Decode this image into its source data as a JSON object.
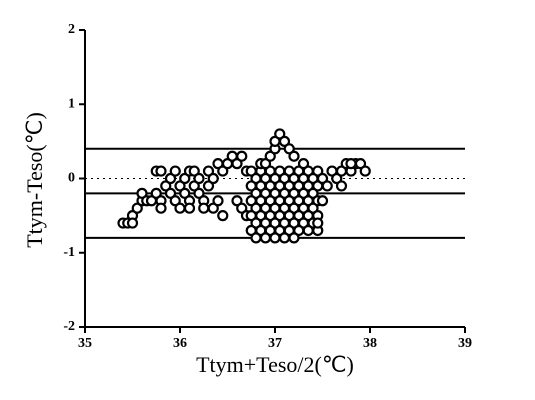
{
  "chart_data": {
    "type": "scatter",
    "x_label": "Ttym+Teso/2(℃)",
    "y_label": "Ttym-Teso(℃)",
    "xlim": [
      35,
      39
    ],
    "xticks": [
      35,
      36,
      37,
      38,
      39
    ],
    "ylim": [
      -2,
      2
    ],
    "yticks": [
      -2,
      -1,
      0,
      1,
      2
    ],
    "color": "#000000",
    "hlines": [
      0.4,
      -0.2,
      -0.8
    ],
    "dotted_line": 0,
    "x": [
      35.4,
      35.45,
      35.5,
      35.5,
      35.55,
      35.6,
      35.6,
      35.65,
      35.7,
      35.75,
      35.8,
      35.8,
      35.75,
      35.8,
      35.85,
      35.9,
      35.95,
      35.9,
      35.95,
      36.0,
      36.0,
      36.05,
      36.05,
      36.1,
      36.1,
      36.1,
      36.15,
      36.15,
      36.2,
      36.2,
      36.25,
      36.25,
      36.3,
      36.3,
      36.35,
      36.35,
      36.4,
      36.4,
      36.45,
      36.45,
      36.5,
      36.55,
      36.6,
      36.65,
      36.6,
      36.65,
      36.7,
      36.7,
      36.75,
      36.85,
      36.95,
      37.05,
      37.15,
      37.25,
      37.35,
      37.45,
      36.8,
      36.9,
      37.0,
      37.1,
      37.2,
      37.3,
      37.4,
      36.75,
      36.85,
      36.95,
      37.05,
      37.15,
      37.25,
      37.35,
      37.45,
      36.8,
      36.9,
      37.0,
      37.1,
      37.2,
      37.3,
      37.4,
      36.75,
      36.85,
      36.95,
      37.05,
      37.15,
      37.25,
      37.35,
      37.45,
      36.8,
      36.9,
      37.0,
      37.1,
      37.2,
      37.3,
      37.4,
      36.75,
      36.85,
      36.95,
      37.05,
      37.15,
      37.25,
      37.35,
      37.45,
      36.8,
      36.9,
      37.0,
      37.1,
      37.2,
      37.3,
      37.4,
      36.75,
      36.85,
      36.95,
      37.05,
      37.15,
      37.25,
      37.35,
      37.45,
      36.8,
      36.9,
      37.0,
      37.1,
      37.2,
      36.85,
      36.9,
      36.95,
      37.0,
      37.0,
      37.05,
      37.1,
      37.15,
      37.2,
      37.3,
      37.5,
      37.55,
      37.6,
      37.65,
      37.7,
      37.75,
      37.8,
      37.85,
      37.9,
      37.95,
      37.7,
      37.8,
      37.5,
      37.45
    ],
    "values": [
      -0.6,
      -0.6,
      -0.5,
      -0.6,
      -0.4,
      -0.3,
      -0.2,
      -0.3,
      -0.3,
      -0.2,
      -0.3,
      -0.4,
      0.1,
      0.1,
      -0.1,
      -0.2,
      -0.3,
      0,
      0.1,
      -0.1,
      -0.4,
      0,
      -0.2,
      0.1,
      -0.3,
      -0.4,
      -0.1,
      0.1,
      0,
      -0.2,
      -0.3,
      -0.4,
      0.1,
      -0.1,
      0,
      -0.4,
      -0.3,
      0.2,
      -0.5,
      0.1,
      0.2,
      0.3,
      0.2,
      0.3,
      -0.3,
      -0.4,
      -0.5,
      0.1,
      0.1,
      0.1,
      0.1,
      0.1,
      0.1,
      0.1,
      0.1,
      0.1,
      0,
      0,
      0,
      0,
      0,
      0,
      0,
      -0.1,
      -0.1,
      -0.1,
      -0.1,
      -0.1,
      -0.1,
      -0.1,
      -0.1,
      -0.2,
      -0.2,
      -0.2,
      -0.2,
      -0.2,
      -0.2,
      -0.2,
      -0.3,
      -0.3,
      -0.3,
      -0.3,
      -0.3,
      -0.3,
      -0.3,
      -0.3,
      -0.4,
      -0.4,
      -0.4,
      -0.4,
      -0.4,
      -0.4,
      -0.4,
      -0.5,
      -0.5,
      -0.5,
      -0.5,
      -0.5,
      -0.5,
      -0.5,
      -0.5,
      -0.6,
      -0.6,
      -0.6,
      -0.6,
      -0.6,
      -0.6,
      -0.6,
      -0.7,
      -0.7,
      -0.7,
      -0.7,
      -0.7,
      -0.7,
      -0.7,
      -0.7,
      -0.8,
      -0.8,
      -0.8,
      -0.8,
      -0.8,
      0.2,
      0.2,
      0.3,
      0.4,
      0.5,
      0.6,
      0.5,
      0.4,
      0.3,
      0.2,
      0,
      -0.1,
      0.1,
      0,
      0.1,
      0.2,
      0.1,
      0.2,
      0.2,
      0.1,
      -0.1,
      0.2,
      -0.3,
      -0.6
    ]
  }
}
